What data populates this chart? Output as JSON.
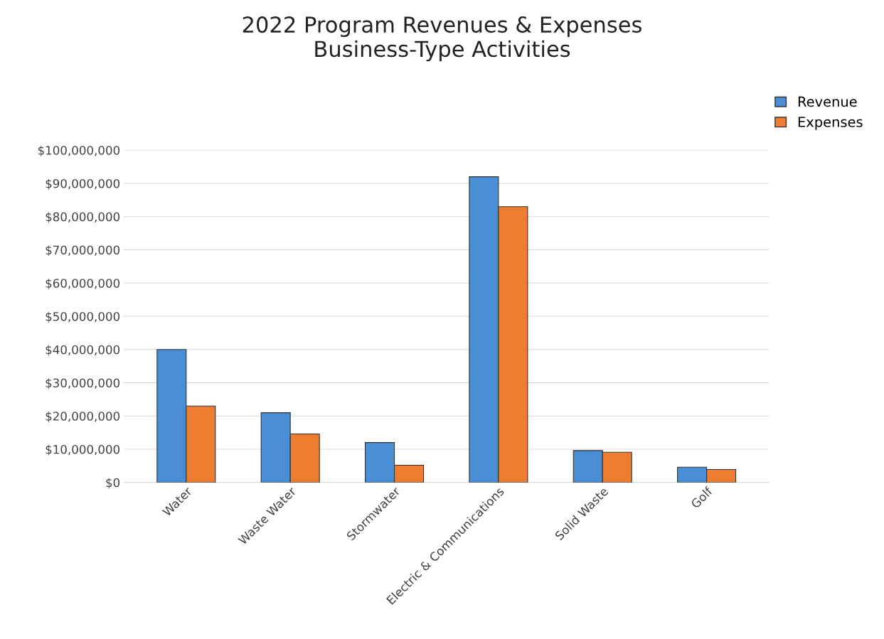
{
  "chart_data": {
    "type": "bar",
    "title": "2022 Program Revenues & Expenses\nBusiness-Type Activities",
    "categories": [
      "Water",
      "Waste Water",
      "Stormwater",
      "Electric & Communications",
      "Solid Waste",
      "Golf"
    ],
    "series": [
      {
        "name": "Revenue",
        "color": "#4a8fd6",
        "values": [
          40000000,
          21000000,
          12000000,
          92000000,
          9600000,
          4600000
        ]
      },
      {
        "name": "Expenses",
        "color": "#ed7d31",
        "values": [
          23000000,
          14600000,
          5200000,
          83000000,
          9100000,
          3900000
        ]
      }
    ],
    "ylim": [
      0,
      100000000
    ],
    "yticks": [
      {
        "value": 0,
        "label": "$0"
      },
      {
        "value": 10000000,
        "label": "$10,000,000"
      },
      {
        "value": 20000000,
        "label": "$20,000,000"
      },
      {
        "value": 30000000,
        "label": "$30,000,000"
      },
      {
        "value": 40000000,
        "label": "$40,000,000"
      },
      {
        "value": 50000000,
        "label": "$50,000,000"
      },
      {
        "value": 60000000,
        "label": "$60,000,000"
      },
      {
        "value": 70000000,
        "label": "$70,000,000"
      },
      {
        "value": 80000000,
        "label": "$80,000,000"
      },
      {
        "value": 90000000,
        "label": "$90,000,000"
      },
      {
        "value": 100000000,
        "label": "$100,000,000"
      }
    ],
    "grid": "y",
    "legend": "top right"
  }
}
